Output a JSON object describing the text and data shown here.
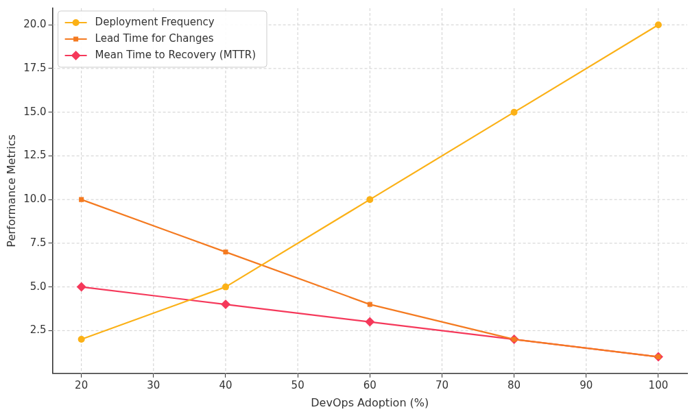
{
  "chart_data": {
    "type": "line",
    "xlabel": "DevOps Adoption (%)",
    "ylabel": "Performance Metrics",
    "x": [
      20,
      40,
      60,
      80,
      100
    ],
    "series": [
      {
        "name": "Deployment Frequency",
        "color": "#fbb117",
        "values": [
          2,
          5,
          10,
          15,
          20
        ],
        "marker": "circle"
      },
      {
        "name": "Lead Time for Changes",
        "color": "#f47a20",
        "values": [
          10,
          7,
          4,
          2,
          1
        ],
        "marker": "square"
      },
      {
        "name": "Mean Time to Recovery (MTTR)",
        "color": "#f5385a",
        "values": [
          5,
          4,
          3,
          2,
          1
        ],
        "marker": "diamond"
      }
    ],
    "xlim": [
      16,
      104
    ],
    "xticks": [
      20,
      30,
      40,
      50,
      60,
      70,
      80,
      90,
      100
    ],
    "ylim": [
      0.05,
      20.95
    ],
    "yticks": [
      {
        "value": 2.5,
        "label": "2.5"
      },
      {
        "value": 5,
        "label": "5.0"
      },
      {
        "value": 7.5,
        "label": "7.5"
      },
      {
        "value": 10,
        "label": "10.0"
      },
      {
        "value": 12.5,
        "label": "12.5"
      },
      {
        "value": 15,
        "label": "15.0"
      },
      {
        "value": 17.5,
        "label": "17.5"
      },
      {
        "value": 20,
        "label": "20.0"
      }
    ],
    "grid": true,
    "legend": "top left",
    "line_style": "solid"
  }
}
